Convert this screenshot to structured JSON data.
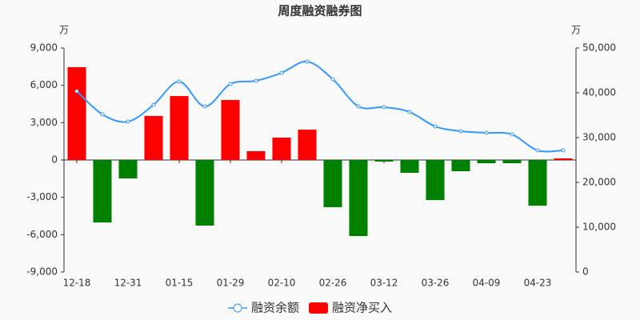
{
  "chart_data": {
    "type": "bar",
    "title": "周度融资融券图",
    "ylabel": "万",
    "y2label": "万",
    "categories": [
      "12-18",
      null,
      "12-31",
      null,
      "01-15",
      null,
      "01-29",
      null,
      "02-10",
      null,
      "02-26",
      null,
      "03-12",
      null,
      "03-26",
      null,
      "04-09",
      null,
      "04-23",
      null
    ],
    "series": [
      {
        "name": "融资余额",
        "type": "line",
        "axis": "y2",
        "color": "#3399ff",
        "values": [
          40360,
          35180,
          33570,
          37320,
          42500,
          36960,
          41960,
          42680,
          44460,
          46960,
          43040,
          36960,
          36790,
          35710,
          32500,
          31430,
          31070,
          30710,
          27140,
          27140
        ]
      },
      {
        "name": "融资净买入",
        "type": "bar",
        "color": "#ff0000",
        "negative_color": "#008000",
        "values": [
          7460,
          -5020,
          -1480,
          3540,
          5140,
          -5270,
          4820,
          710,
          1800,
          2440,
          -3790,
          -6110,
          -130,
          -1030,
          -3220,
          -900,
          -260,
          -260,
          -3670,
          130
        ]
      }
    ],
    "ylim": [
      -9000,
      9000
    ],
    "yticks": [
      {
        "value": -9000,
        "label": "-9,000"
      },
      {
        "value": -6000,
        "label": "-6,000"
      },
      {
        "value": -3000,
        "label": "-3,000"
      },
      0,
      {
        "value": 3000,
        "label": "3,000"
      },
      {
        "value": 6000,
        "label": "6,000"
      },
      {
        "value": 9000,
        "label": "9,000"
      }
    ],
    "y2lim": [
      0,
      50000
    ],
    "y2ticks": [
      0,
      {
        "value": 10000,
        "label": "10,000"
      },
      {
        "value": 20000,
        "label": "20,000"
      },
      {
        "value": 30000,
        "label": "30,000"
      },
      {
        "value": 40000,
        "label": "40,000"
      },
      {
        "value": 50000,
        "label": "50,000"
      }
    ],
    "legend": "bottom"
  }
}
